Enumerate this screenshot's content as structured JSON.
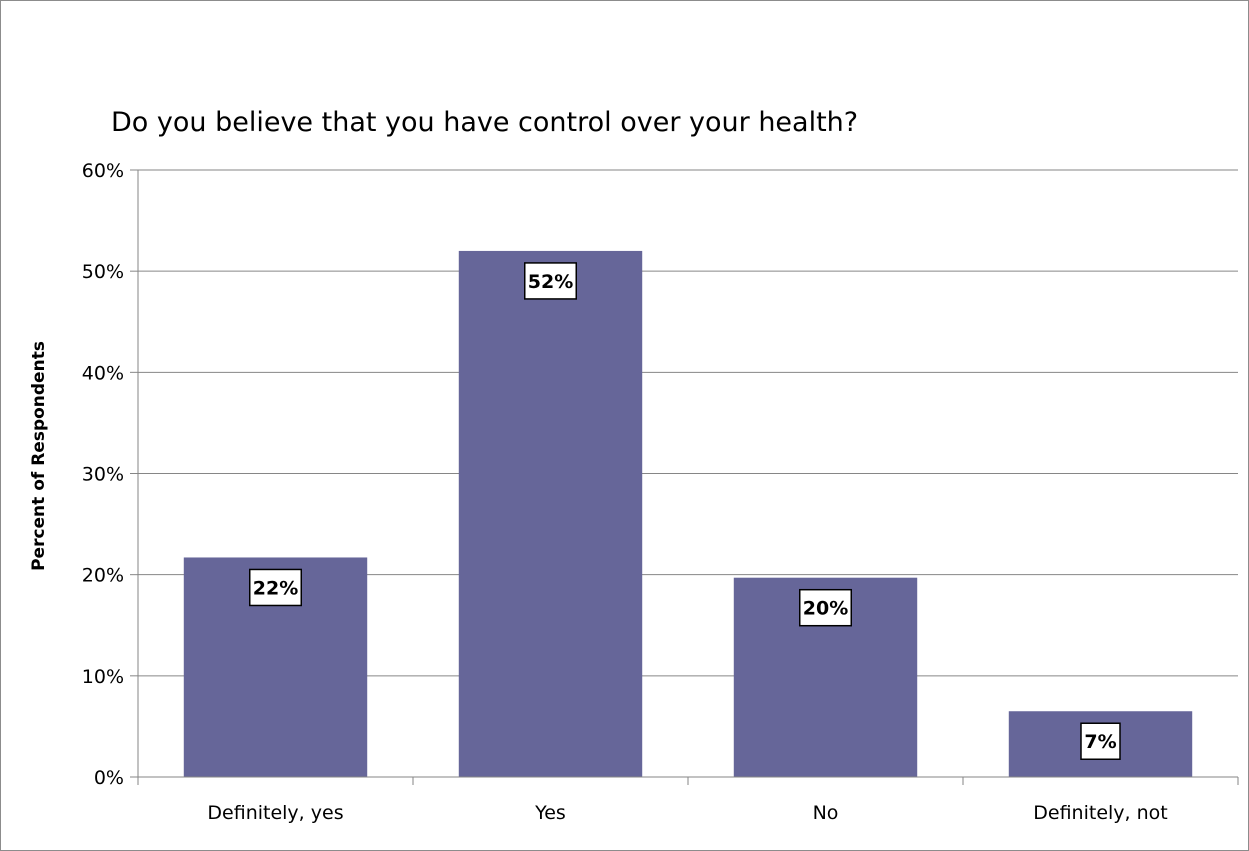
{
  "chart_data": {
    "type": "bar",
    "title": "Do you believe that you have control over your health?",
    "xlabel": "",
    "ylabel": "Percent of Respondents",
    "categories": [
      "Definitely, yes",
      "Yes",
      "No",
      "Definitely, not"
    ],
    "values": [
      21.7,
      52,
      19.7,
      6.5
    ],
    "data_labels": [
      "22%",
      "52%",
      "20%",
      "7%"
    ],
    "ylim": [
      0,
      60
    ],
    "yticks": [
      0,
      10,
      20,
      30,
      40,
      50,
      60
    ],
    "ytick_labels": [
      "0%",
      "10%",
      "20%",
      "30%",
      "40%",
      "50%",
      "60%"
    ],
    "grid": true,
    "legend": "none",
    "colors": {
      "bar": "#666699",
      "grid": "#868686",
      "axis": "#868686",
      "label_box_border": "#000000",
      "label_box_fill": "#ffffff"
    }
  }
}
